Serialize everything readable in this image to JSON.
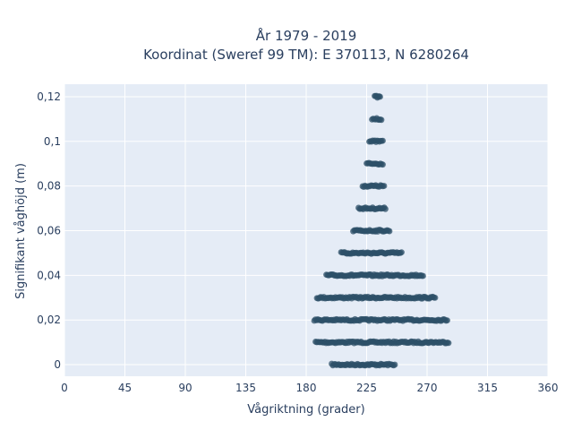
{
  "chart_data": {
    "type": "scatter",
    "title_line1": "År 1979 - 2019",
    "title_line2": "Koordinat (Sweref 99 TM): E 370113, N 6280264",
    "xlabel": "Vågriktning (grader)",
    "ylabel": "Signifikant våghöjd (m)",
    "xlim": [
      0,
      360
    ],
    "ylim": [
      -0.0052,
      0.1256
    ],
    "x_ticks": [
      0,
      45,
      90,
      135,
      180,
      225,
      270,
      315,
      360
    ],
    "x_tick_labels": [
      "0",
      "45",
      "90",
      "135",
      "180",
      "225",
      "270",
      "315",
      "360"
    ],
    "y_ticks": [
      0,
      0.02,
      0.04,
      0.06,
      0.08,
      0.1,
      0.12
    ],
    "y_tick_labels": [
      "0",
      "0,02",
      "0,04",
      "0,06",
      "0,08",
      "0,1",
      "0,12"
    ],
    "grid": true,
    "background": "#e5ecf6",
    "marker_color": "#2e5068",
    "series": [
      {
        "name": "",
        "bands": [
          {
            "y": 0.0,
            "x_min": 199,
            "x_max": 246
          },
          {
            "y": 0.01,
            "x_min": 187,
            "x_max": 286
          },
          {
            "y": 0.02,
            "x_min": 186,
            "x_max": 285
          },
          {
            "y": 0.03,
            "x_min": 188,
            "x_max": 276
          },
          {
            "y": 0.04,
            "x_min": 195,
            "x_max": 267
          },
          {
            "y": 0.05,
            "x_min": 206,
            "x_max": 251
          },
          {
            "y": 0.06,
            "x_min": 215,
            "x_max": 242
          },
          {
            "y": 0.07,
            "x_min": 219,
            "x_max": 239
          },
          {
            "y": 0.08,
            "x_min": 222,
            "x_max": 238
          },
          {
            "y": 0.09,
            "x_min": 225,
            "x_max": 237
          },
          {
            "y": 0.1,
            "x_min": 227,
            "x_max": 237
          },
          {
            "y": 0.11,
            "x_min": 229,
            "x_max": 236
          },
          {
            "y": 0.12,
            "x_min": 231,
            "x_max": 235
          }
        ]
      }
    ]
  }
}
